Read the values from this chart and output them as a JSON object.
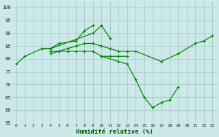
{
  "title": "",
  "xlabel": "Humidité relative (%)",
  "ylabel": "",
  "bg_color": "#cce8e8",
  "grid_color": "#aacccc",
  "line_color": "#008800",
  "xlim": [
    -0.5,
    23.5
  ],
  "ylim": [
    55,
    102
  ],
  "yticks": [
    55,
    60,
    65,
    70,
    75,
    80,
    85,
    90,
    95,
    100
  ],
  "xticks": [
    0,
    1,
    2,
    3,
    4,
    5,
    6,
    7,
    8,
    9,
    10,
    11,
    12,
    13,
    14,
    15,
    16,
    17,
    18,
    19,
    20,
    21,
    22,
    23
  ],
  "series": [
    [
      78,
      81,
      null,
      84,
      84,
      null,
      null,
      null,
      null,
      90,
      93,
      88,
      null,
      null,
      null,
      null,
      null,
      null,
      null,
      null,
      null,
      null,
      null,
      null
    ],
    [
      null,
      null,
      null,
      84,
      84,
      86,
      null,
      87,
      91,
      93,
      null,
      null,
      null,
      null,
      null,
      null,
      null,
      null,
      null,
      null,
      null,
      null,
      null,
      null
    ],
    [
      null,
      null,
      null,
      null,
      82,
      83,
      84,
      85,
      86,
      86,
      85,
      84,
      83,
      83,
      83,
      null,
      null,
      79,
      null,
      82,
      null,
      86,
      87,
      89
    ],
    [
      null,
      null,
      null,
      null,
      83,
      83,
      83,
      83,
      83,
      83,
      81,
      81,
      81,
      81,
      null,
      null,
      null,
      null,
      null,
      null,
      null,
      null,
      null,
      null
    ],
    [
      null,
      null,
      null,
      null,
      null,
      null,
      null,
      null,
      null,
      null,
      81,
      null,
      79,
      78,
      72,
      65,
      61,
      63,
      64,
      69,
      null,
      null,
      null,
      null
    ]
  ]
}
